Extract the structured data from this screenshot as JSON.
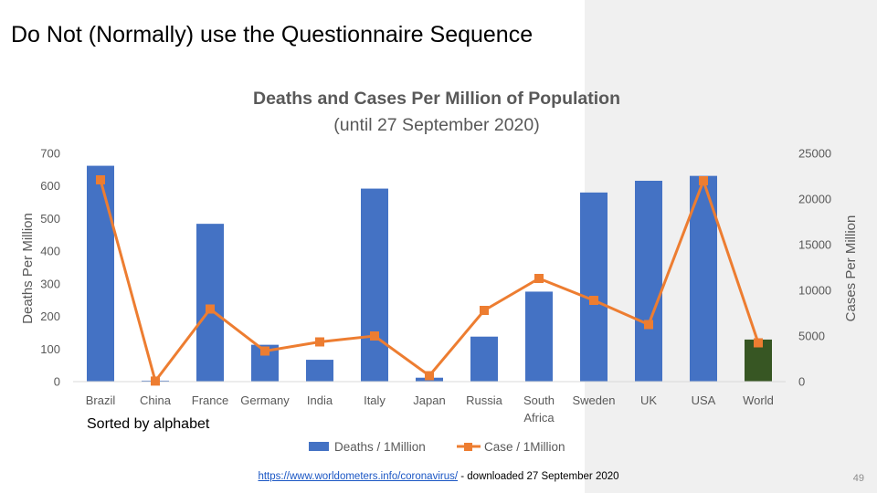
{
  "slide": {
    "title": "Do Not (Normally) use the Questionnaire Sequence",
    "note": "Sorted by alphabet",
    "source_link": "https://www.worldometers.info/coronavirus/",
    "source_suffix": " - downloaded 27 September 2020",
    "page_number": "49"
  },
  "chart_data": {
    "type": "bar",
    "title": "Deaths and Cases Per Million of Population",
    "subtitle": "(until 27 September 2020)",
    "categories": [
      "Brazil",
      "China",
      "France",
      "Germany",
      "India",
      "Italy",
      "Japan",
      "Russia",
      "South Africa",
      "Sweden",
      "UK",
      "USA",
      "World"
    ],
    "y_left": {
      "label": "Deaths Per Million",
      "lim": [
        0,
        700
      ],
      "ticks": [
        0,
        100,
        200,
        300,
        400,
        500,
        600,
        700
      ]
    },
    "y_right": {
      "label": "Cases Per Million",
      "lim": [
        0,
        25000
      ],
      "ticks": [
        0,
        5000,
        10000,
        15000,
        20000,
        25000
      ]
    },
    "series": [
      {
        "name": "Deaths / 1Million",
        "type": "bar",
        "axis": "left",
        "color": "#4472c4",
        "values": [
          662,
          3,
          484,
          113,
          67,
          592,
          12,
          138,
          276,
          580,
          616,
          631,
          129
        ],
        "highlight": {
          "index": 12,
          "color": "#375623"
        }
      },
      {
        "name": "Case / 1Million",
        "type": "line",
        "axis": "right",
        "color": "#ed7d31",
        "values": [
          22100,
          60,
          7950,
          3350,
          4350,
          5000,
          650,
          7800,
          11300,
          8900,
          6250,
          22000,
          4250
        ]
      }
    ],
    "legend_position": "bottom",
    "grid": false
  }
}
